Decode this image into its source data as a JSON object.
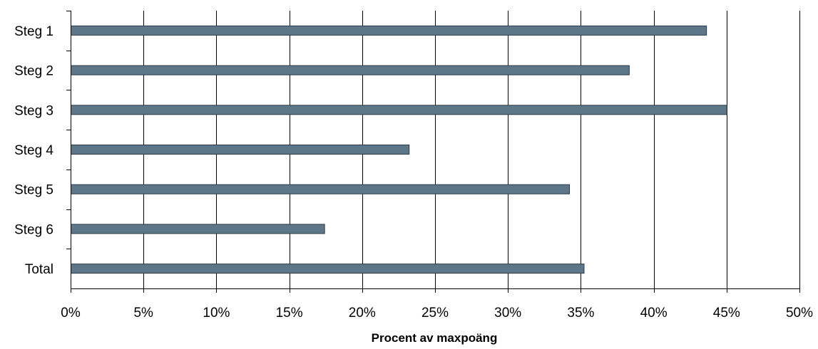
{
  "chart_data": {
    "type": "bar",
    "orientation": "horizontal",
    "categories": [
      "Steg 1",
      "Steg 2",
      "Steg 3",
      "Steg 4",
      "Steg 5",
      "Steg 6",
      "Total"
    ],
    "values": [
      43.6,
      38.3,
      45.0,
      23.2,
      34.2,
      17.4,
      35.2
    ],
    "value_unit": "%",
    "xlabel": "Procent av maxpoäng",
    "ylabel": "",
    "xlim": [
      0,
      50
    ],
    "x_ticks": [
      0,
      5,
      10,
      15,
      20,
      25,
      30,
      35,
      40,
      45,
      50
    ],
    "x_tick_labels": [
      "0%",
      "5%",
      "10%",
      "15%",
      "20%",
      "25%",
      "30%",
      "35%",
      "40%",
      "45%",
      "50%"
    ],
    "grid": "vertical",
    "legend": "none",
    "bar_color": "#5d7789",
    "bar_edge_color": "#2b3a44"
  }
}
